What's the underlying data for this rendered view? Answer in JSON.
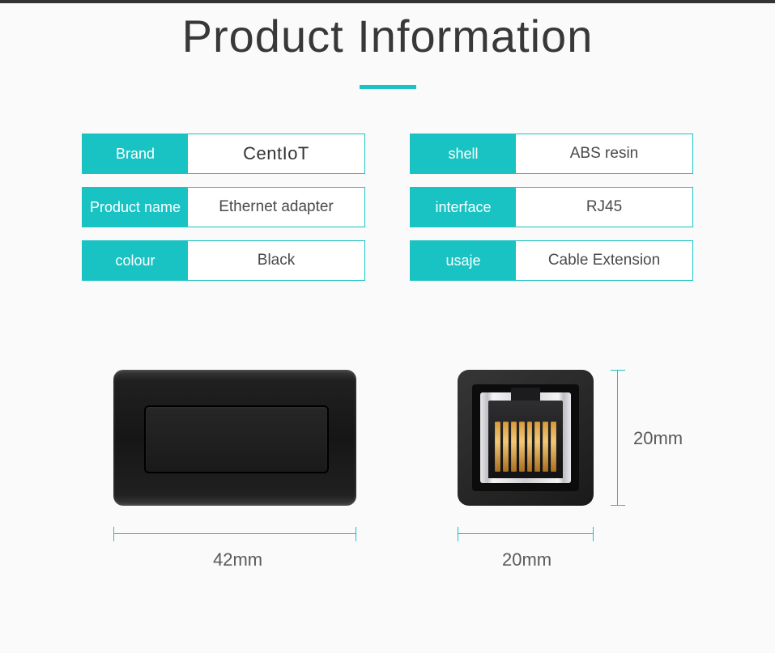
{
  "title": "Product Information",
  "colors": {
    "accent": "#19c3c3",
    "background": "#fafafa",
    "text": "#383838"
  },
  "specs": {
    "left": [
      {
        "label": "Brand",
        "value": "CentIoT"
      },
      {
        "label": "Product name",
        "value": "Ethernet adapter"
      },
      {
        "label": "colour",
        "value": "Black"
      }
    ],
    "right": [
      {
        "label": "shell",
        "value": "ABS resin"
      },
      {
        "label": "interface",
        "value": "RJ45"
      },
      {
        "label": "usaje",
        "value": "Cable Extension"
      }
    ]
  },
  "dimensions": {
    "side_width": "42mm",
    "front_width": "20mm",
    "front_height": "20mm"
  },
  "rj45_pin_count": 8
}
